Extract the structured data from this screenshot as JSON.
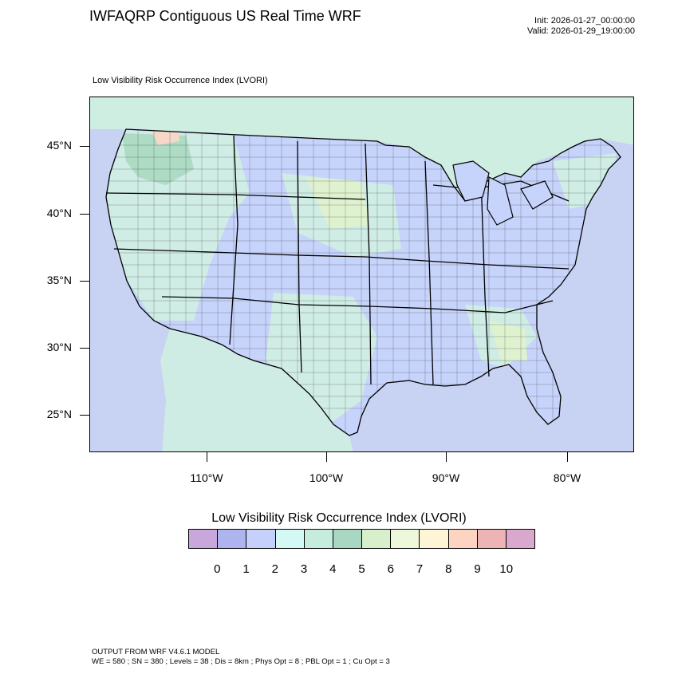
{
  "header": {
    "title": "IWFAQRP Contiguous US Real Time WRF",
    "init": "Init: 2026-01-27_00:00:00",
    "valid": "Valid: 2026-01-29_19:00:00"
  },
  "map": {
    "subtitle": "Low Visibility Risk Occurrence Index   (LVORI)",
    "lat_labels": [
      "45°N",
      "40°N",
      "35°N",
      "30°N",
      "25°N"
    ],
    "lon_labels": [
      "110°W",
      "100°W",
      "90°W",
      "80°W"
    ],
    "colors": {
      "ocean": "#c8d2f2",
      "land_base": "#c6d3fb",
      "land_light_green": "#cfeee2",
      "land_green": "#a9d9c0",
      "land_yellowgreen": "#dff2cf",
      "land_peach": "#f6d7c8",
      "state_line": "#000000",
      "county_line": "#333333"
    }
  },
  "colorbar": {
    "title": "Low Visibility Risk Occurrence Index  (LVORI)",
    "colors": [
      "#c7a7dc",
      "#adb4ee",
      "#c5d0fb",
      "#d4f8f4",
      "#c5ecdc",
      "#a8d8c1",
      "#d8efcb",
      "#edf7d9",
      "#fef4d6",
      "#fdd3c1",
      "#eeb3b4",
      "#dba8cd"
    ],
    "labels": [
      "0",
      "1",
      "2",
      "3",
      "4",
      "5",
      "6",
      "7",
      "8",
      "9",
      "10"
    ]
  },
  "footer": {
    "line1": "OUTPUT FROM WRF V4.6.1 MODEL",
    "line2": "WE = 580 ; SN = 380 ; Levels = 38 ; Dis = 8km ; Phys Opt = 8 ; PBL Opt = 1 ; Cu Opt = 3"
  }
}
